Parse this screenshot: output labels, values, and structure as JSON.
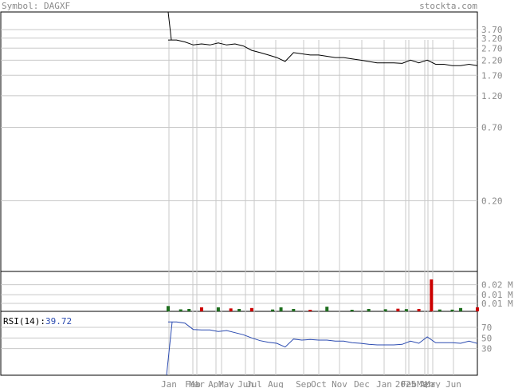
{
  "header": {
    "symbol_label": "Symbol: DAGXF",
    "site": "stockta.com"
  },
  "colors": {
    "background": "#ffffff",
    "grid": "#c8c8c8",
    "price_line": "#000000",
    "rsi_line": "#2a4ab0",
    "up_volume": "#1e6e1e",
    "down_volume": "#cc0000",
    "header_text": "#8a8a8a",
    "axis_text": "#8a8a8a"
  },
  "chart_data": [
    {
      "type": "line",
      "panel": "price",
      "scale": "log",
      "y_ticks": [
        "3.70",
        "3.20",
        "2.70",
        "2.20",
        "1.70",
        "1.20",
        "0.70",
        "0.20"
      ],
      "y_tick_values": [
        3.7,
        3.2,
        2.7,
        2.2,
        1.7,
        1.2,
        0.7,
        0.2
      ],
      "ylim": [
        0.06,
        5.0
      ],
      "x_ticks": [
        "Jan",
        "Feb",
        "Mar",
        "Apr",
        "May",
        "Jun",
        "Jul",
        "Aug",
        "Sep",
        "Oct",
        "Nov",
        "Dec",
        "Jan",
        "2025",
        "Feb",
        "Mar",
        "Apr",
        "May",
        "Jun"
      ],
      "x": [
        0,
        2,
        4,
        6,
        8,
        10,
        12,
        14,
        16,
        18,
        20,
        22,
        24,
        26,
        28,
        30,
        32,
        34,
        36,
        38,
        40,
        42,
        44,
        46,
        48,
        50,
        52,
        54,
        56,
        58,
        60,
        62,
        64,
        66,
        68,
        70,
        72,
        74
      ],
      "values": [
        3.1,
        3.1,
        3.0,
        2.85,
        2.9,
        2.85,
        2.95,
        2.85,
        2.9,
        2.8,
        2.6,
        2.5,
        2.4,
        2.3,
        2.15,
        2.5,
        2.45,
        2.4,
        2.4,
        2.35,
        2.3,
        2.3,
        2.25,
        2.2,
        2.15,
        2.1,
        2.1,
        2.1,
        2.08,
        2.2,
        2.1,
        2.2,
        2.05,
        2.05,
        2.0,
        2.0,
        2.05,
        2.0
      ]
    },
    {
      "type": "bar",
      "panel": "volume",
      "y_ticks": [
        "0.02 M",
        "0.01 M",
        "0.01 M"
      ],
      "y_tick_values": [
        0.02,
        0.0125,
        0.006
      ],
      "ylim": [
        0,
        0.03
      ],
      "x": [
        0,
        3,
        5,
        8,
        12,
        15,
        17,
        20,
        25,
        27,
        30,
        34,
        38,
        44,
        48,
        52,
        55,
        57,
        60,
        63,
        65,
        68,
        70,
        74
      ],
      "values": [
        0.004,
        0.0015,
        0.0018,
        0.003,
        0.003,
        0.0022,
        0.0018,
        0.0025,
        0.0014,
        0.003,
        0.0018,
        0.0012,
        0.0035,
        0.0012,
        0.0018,
        0.0016,
        0.002,
        0.0017,
        0.0018,
        0.024,
        0.0014,
        0.0013,
        0.0025,
        0.003
      ],
      "direction": [
        "up",
        "up",
        "up",
        "down",
        "up",
        "down",
        "up",
        "down",
        "up",
        "up",
        "up",
        "down",
        "up",
        "up",
        "up",
        "up",
        "down",
        "up",
        "down",
        "down",
        "up",
        "up",
        "up",
        "down"
      ]
    },
    {
      "type": "line",
      "panel": "rsi",
      "legend": "RSI(14):",
      "last_value": "39.72",
      "y_ticks": [
        "70",
        "50",
        "30"
      ],
      "y_tick_values": [
        70,
        50,
        30
      ],
      "ylim": [
        -20,
        100
      ],
      "x": [
        0,
        2,
        4,
        6,
        8,
        10,
        12,
        14,
        16,
        18,
        20,
        22,
        24,
        26,
        28,
        30,
        32,
        34,
        36,
        38,
        40,
        42,
        44,
        46,
        48,
        50,
        52,
        54,
        56,
        58,
        60,
        62,
        64,
        66,
        68,
        70,
        72,
        74
      ],
      "values": [
        80,
        80,
        78,
        66,
        65,
        65,
        62,
        64,
        60,
        56,
        50,
        45,
        42,
        40,
        33,
        48,
        46,
        47,
        46,
        46,
        44,
        44,
        41,
        40,
        38,
        37,
        37,
        37,
        38,
        44,
        40,
        52,
        41,
        41,
        41,
        40,
        44,
        39.72
      ]
    }
  ]
}
